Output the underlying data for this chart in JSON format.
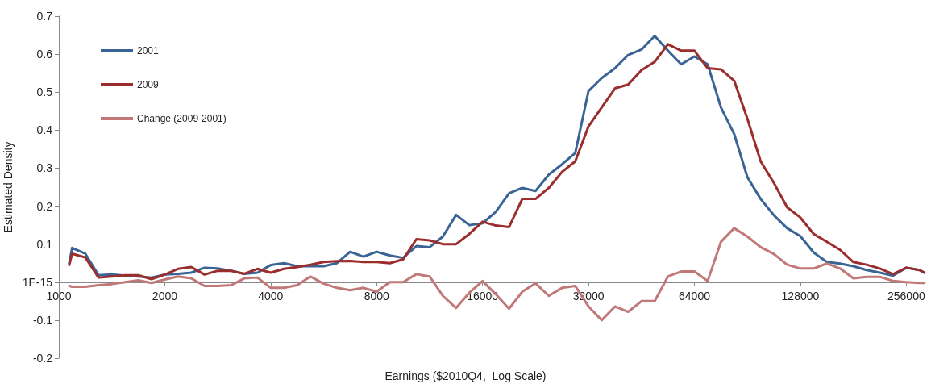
{
  "chart_data": {
    "type": "line",
    "annotations": [
      "Earnings ($2010Q4,  Log Scale)"
    ],
    "ylabel": "Estimated Density",
    "log": "x",
    "grid": false,
    "legend": "top left",
    "marker": "none",
    "line_style": "solid",
    "x": [
      1070,
      1091,
      1189,
      1297,
      1414,
      1542,
      1682,
      1834,
      2000,
      2181,
      2378,
      2594,
      2828,
      3084,
      3364,
      3668,
      4000,
      4362,
      4757,
      5187,
      5657,
      6169,
      6727,
      7336,
      8000,
      8724,
      9514,
      10375,
      11314,
      12338,
      13454,
      14672,
      16000,
      17448,
      19027,
      20749,
      22627,
      24675,
      26909,
      29344,
      32000,
      34896,
      38055,
      41499,
      45255,
      49351,
      53817,
      58688,
      64000,
      69793,
      76109,
      82998,
      90510,
      98701,
      107635,
      117376,
      128000,
      139586,
      152218,
      165995,
      181019,
      197403,
      215270,
      234752,
      256000,
      279170,
      288000
    ],
    "xlim": [
      1000,
      290000
    ],
    "xticks": [
      1000,
      2000,
      4000,
      8000,
      16000,
      32000,
      64000,
      128000,
      256000
    ],
    "ylim": [
      -0.2,
      0.7
    ],
    "yticks": [
      -0.2,
      -0.1,
      {
        "value": 0,
        "label": "1E-15"
      },
      0.1,
      0.2,
      0.3,
      0.4,
      0.5,
      0.6,
      0.7
    ],
    "series": [
      {
        "name": "2001",
        "color": "#3b6496",
        "values": [
          0.05,
          0.09,
          0.075,
          0.018,
          0.02,
          0.017,
          0.015,
          0.012,
          0.02,
          0.022,
          0.025,
          0.038,
          0.036,
          0.03,
          0.022,
          0.025,
          0.045,
          0.05,
          0.042,
          0.042,
          0.042,
          0.05,
          0.08,
          0.067,
          0.08,
          0.07,
          0.064,
          0.095,
          0.092,
          0.12,
          0.177,
          0.15,
          0.155,
          0.185,
          0.234,
          0.248,
          0.24,
          0.283,
          0.31,
          0.34,
          0.503,
          0.537,
          0.563,
          0.598,
          0.612,
          0.648,
          0.609,
          0.573,
          0.594,
          0.573,
          0.46,
          0.39,
          0.276,
          0.219,
          0.176,
          0.142,
          0.121,
          0.078,
          0.053,
          0.049,
          0.042,
          0.032,
          0.025,
          0.017,
          0.038,
          0.032,
          0.025
        ]
      },
      {
        "name": "2009",
        "color": "#9b2d2d",
        "values": [
          0.045,
          0.075,
          0.065,
          0.012,
          0.015,
          0.018,
          0.018,
          0.008,
          0.02,
          0.035,
          0.04,
          0.02,
          0.03,
          0.03,
          0.022,
          0.035,
          0.025,
          0.035,
          0.04,
          0.046,
          0.053,
          0.055,
          0.056,
          0.053,
          0.053,
          0.05,
          0.06,
          0.113,
          0.11,
          0.1,
          0.1,
          0.127,
          0.159,
          0.149,
          0.145,
          0.219,
          0.219,
          0.248,
          0.29,
          0.318,
          0.41,
          0.46,
          0.51,
          0.52,
          0.558,
          0.58,
          0.626,
          0.609,
          0.609,
          0.563,
          0.56,
          0.53,
          0.43,
          0.318,
          0.261,
          0.197,
          0.17,
          0.127,
          0.106,
          0.085,
          0.053,
          0.046,
          0.036,
          0.021,
          0.038,
          0.032,
          0.025
        ]
      },
      {
        "name": "Change (2009-2001)",
        "color": "#c07878",
        "values": [
          -0.01,
          -0.012,
          -0.012,
          -0.008,
          -0.005,
          0,
          0.005,
          -0.002,
          0.007,
          0.015,
          0.01,
          -0.01,
          -0.01,
          -0.008,
          0.01,
          0.012,
          -0.015,
          -0.015,
          -0.008,
          0.015,
          -0.004,
          -0.015,
          -0.021,
          -0.015,
          -0.025,
          0,
          0,
          0.021,
          0.015,
          -0.036,
          -0.068,
          -0.028,
          0.003,
          -0.032,
          -0.07,
          -0.025,
          -0.003,
          -0.036,
          -0.015,
          -0.01,
          -0.064,
          -0.1,
          -0.064,
          -0.078,
          -0.05,
          -0.05,
          0.015,
          0.028,
          0.028,
          0.003,
          0.106,
          0.142,
          0.12,
          0.092,
          0.074,
          0.046,
          0.036,
          0.036,
          0.049,
          0.036,
          0.01,
          0.014,
          0.014,
          0.003,
          0,
          -0.002,
          -0.002
        ]
      }
    ]
  }
}
